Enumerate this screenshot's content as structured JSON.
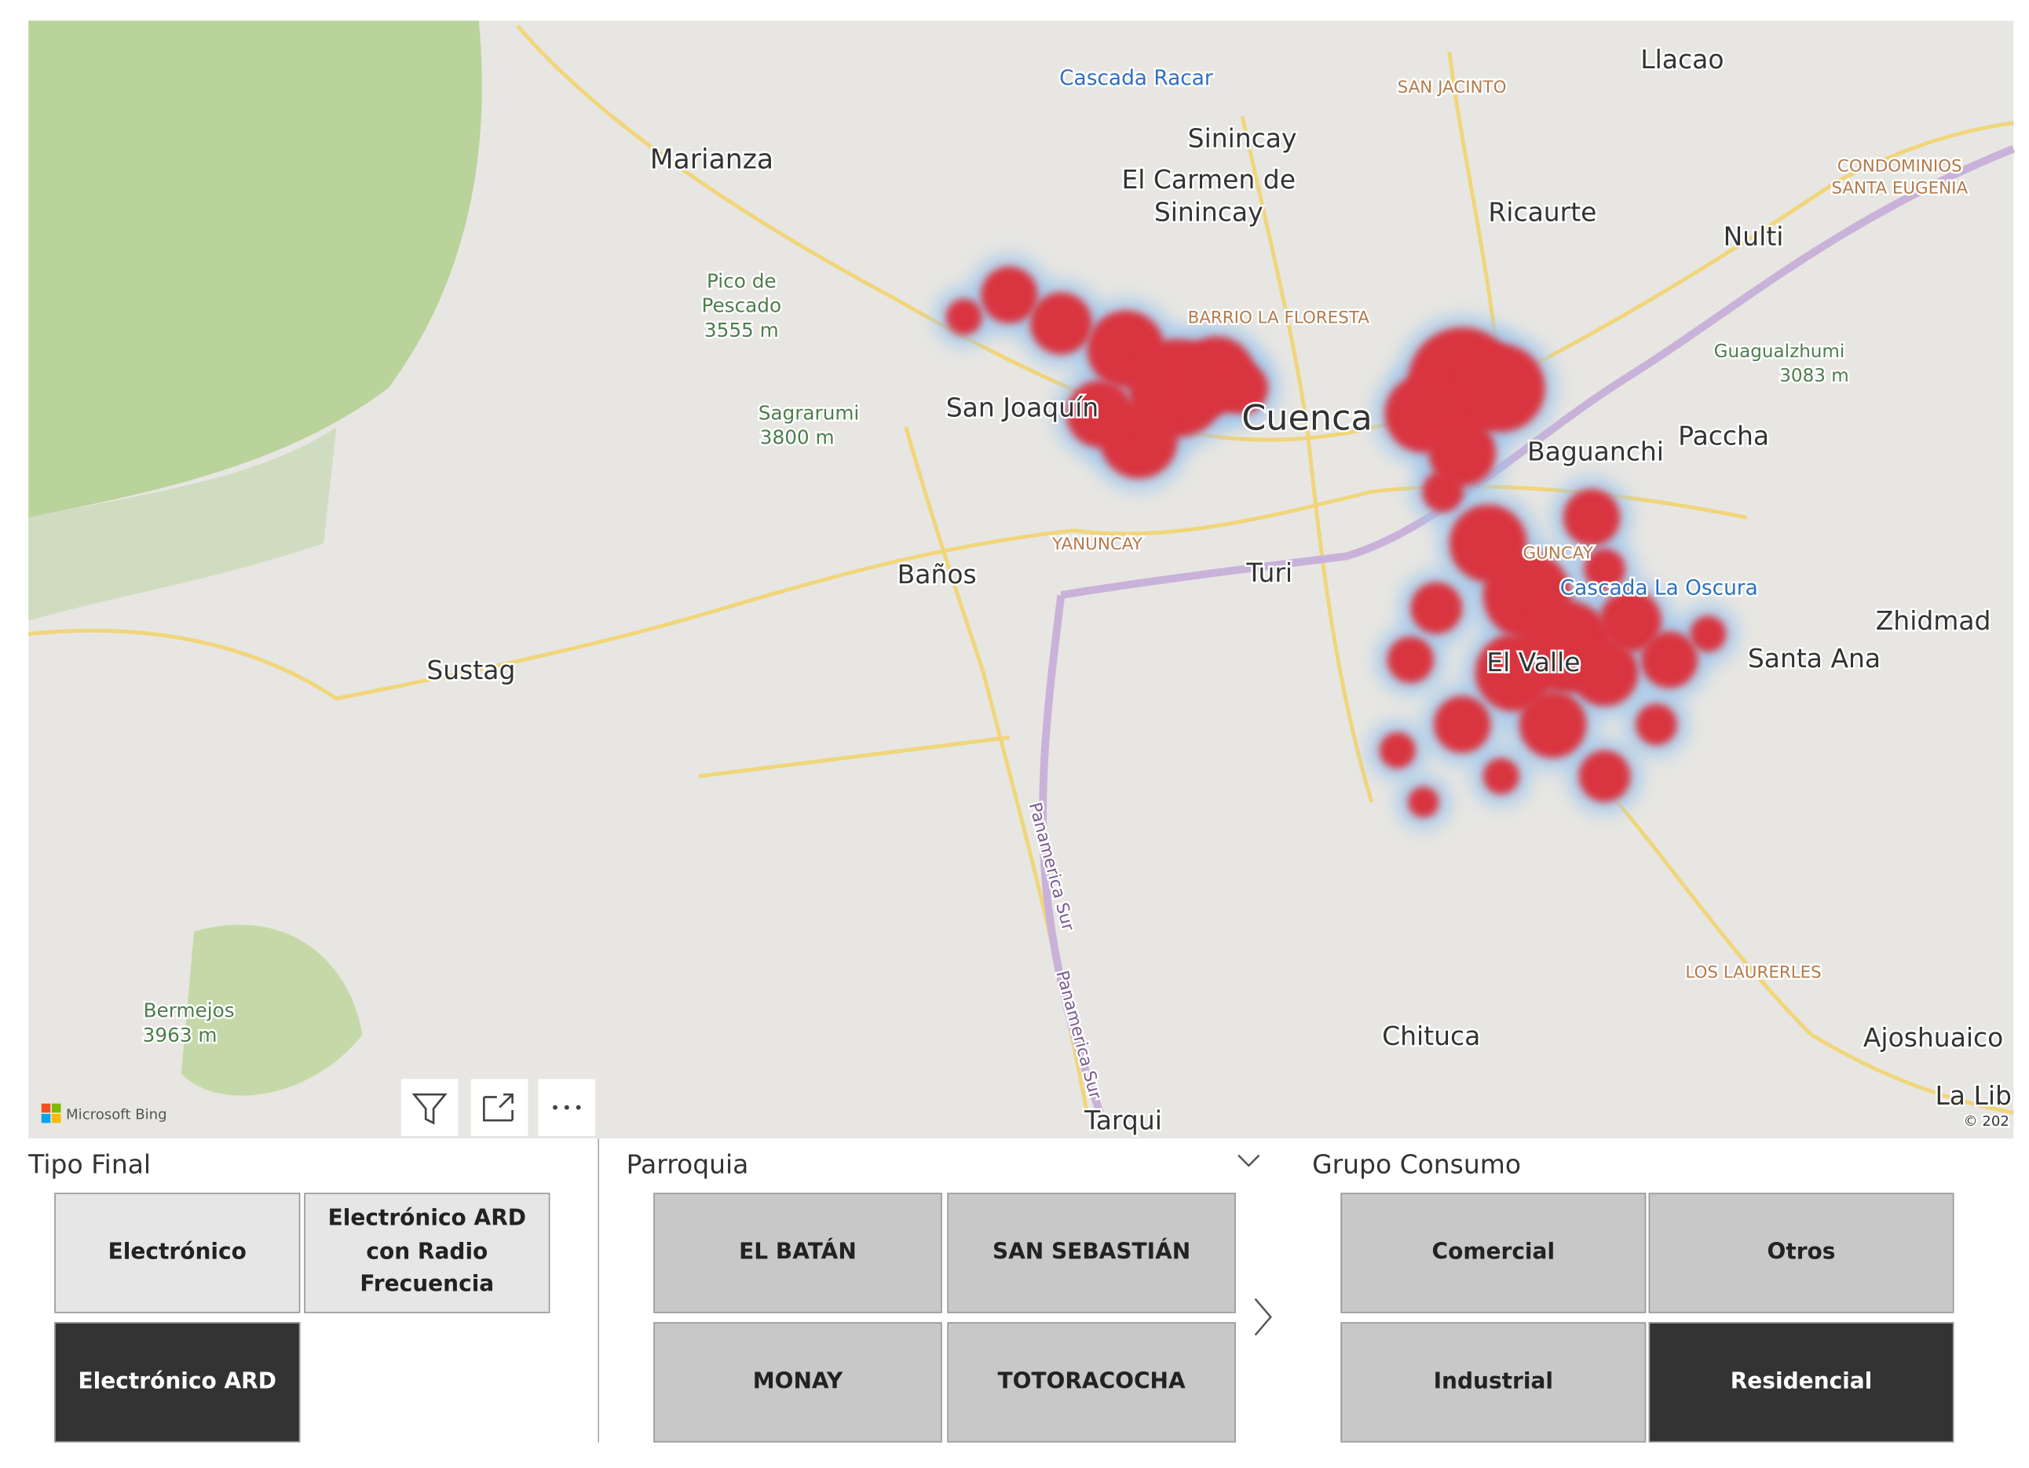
{
  "map": {
    "places": [
      "Cascada Racar",
      "SAN JACINTO",
      "Llacao",
      "Marianza",
      "Sinincay",
      "El Carmen de",
      "Sinincay",
      "Ricaurte",
      "CONDOMINIOS",
      "SANTA EUGENIA",
      "Nulti",
      "Pico de",
      "Pescado",
      "3555 m",
      "BARRIO LA FLORESTA",
      "Guagualzhumi",
      "3083 m",
      "Sagrarumi",
      "3800 m",
      "San Joaquín",
      "Cuenca",
      "Baguanchi",
      "Paccha",
      "YANUNCAY",
      "Baños",
      "Turi",
      "GUNCAY",
      "Cascada La Oscura",
      "Zhidmad",
      "Sustag",
      "El Valle",
      "Santa Ana",
      "Panamerica Sur",
      "Panamerica Sur",
      "LOS LAURERLES",
      "Bermejos",
      "3963 m",
      "Chituca",
      "Ajoshuaico",
      "Tarqui",
      "La Lib",
      "© 202"
    ],
    "attribution": "Microsoft Bing"
  },
  "slicers": [
    {
      "title": "Tipo Final",
      "items": [
        {
          "label": "Electrónico",
          "selected": false
        },
        {
          "label": "Electrónico ARD con Radio Frecuencia",
          "selected": false
        },
        {
          "label": "Electrónico ARD",
          "selected": true
        }
      ]
    },
    {
      "title": "Parroquia",
      "items": [
        {
          "label": "EL BATÁN",
          "selected": false
        },
        {
          "label": "SAN SEBASTIÁN",
          "selected": false
        },
        {
          "label": "MONAY",
          "selected": false
        },
        {
          "label": "TOTORACOCHA",
          "selected": false
        }
      ]
    },
    {
      "title": "Grupo Consumo",
      "items": [
        {
          "label": "Comercial",
          "selected": false
        },
        {
          "label": "Otros",
          "selected": false
        },
        {
          "label": "Industrial",
          "selected": false
        },
        {
          "label": "Residencial",
          "selected": true
        }
      ]
    }
  ]
}
